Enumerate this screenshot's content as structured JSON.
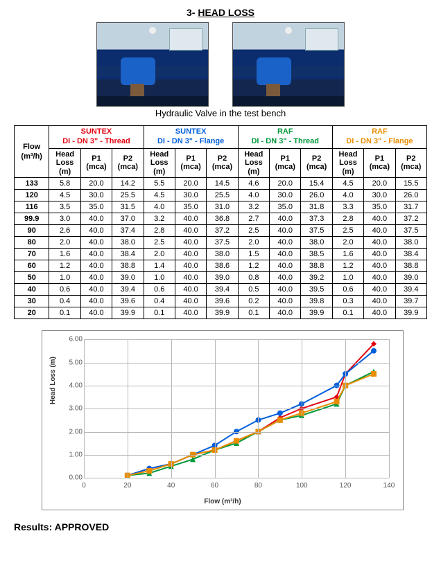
{
  "title_prefix": "3- ",
  "title_text": "HEAD LOSS",
  "caption": "Hydraulic Valve in the test bench",
  "table": {
    "flow_header_line1": "Flow",
    "flow_header_line2": "(m³/h)",
    "groups": [
      {
        "brand": "SUNTEX",
        "desc": "DI - DN 3\" - Thread",
        "color": "#e30613"
      },
      {
        "brand": "SUNTEX",
        "desc": "DI  - DN 3\" - Flange",
        "color": "#005fdb"
      },
      {
        "brand": "RAF",
        "desc": "DI - DN 3\" - Thread",
        "color": "#00983a"
      },
      {
        "brand": "RAF",
        "desc": "DI - DN 3\" - Flange",
        "color": "#e88d00"
      }
    ],
    "subcols": [
      {
        "line1": "Head",
        "line2": "Loss",
        "line3": "(m)"
      },
      {
        "line1": "P1",
        "line2": "(mca)",
        "line3": ""
      },
      {
        "line1": "P2",
        "line2": "(mca)",
        "line3": ""
      }
    ],
    "rows": [
      {
        "flow": "133",
        "c": [
          "5.8",
          "20.0",
          "14.2",
          "5.5",
          "20.0",
          "14.5",
          "4.6",
          "20.0",
          "15.4",
          "4.5",
          "20.0",
          "15.5"
        ]
      },
      {
        "flow": "120",
        "c": [
          "4.5",
          "30.0",
          "25.5",
          "4.5",
          "30.0",
          "25.5",
          "4.0",
          "30.0",
          "26.0",
          "4.0",
          "30.0",
          "26.0"
        ]
      },
      {
        "flow": "116",
        "c": [
          "3.5",
          "35.0",
          "31.5",
          "4.0",
          "35.0",
          "31.0",
          "3.2",
          "35.0",
          "31.8",
          "3.3",
          "35.0",
          "31.7"
        ]
      },
      {
        "flow": "99.9",
        "c": [
          "3.0",
          "40.0",
          "37.0",
          "3.2",
          "40.0",
          "36.8",
          "2.7",
          "40.0",
          "37.3",
          "2.8",
          "40.0",
          "37.2"
        ]
      },
      {
        "flow": "90",
        "c": [
          "2.6",
          "40.0",
          "37.4",
          "2.8",
          "40.0",
          "37.2",
          "2.5",
          "40.0",
          "37.5",
          "2.5",
          "40.0",
          "37.5"
        ]
      },
      {
        "flow": "80",
        "c": [
          "2.0",
          "40.0",
          "38.0",
          "2.5",
          "40.0",
          "37.5",
          "2.0",
          "40.0",
          "38.0",
          "2.0",
          "40.0",
          "38.0"
        ]
      },
      {
        "flow": "70",
        "c": [
          "1.6",
          "40.0",
          "38.4",
          "2.0",
          "40.0",
          "38.0",
          "1.5",
          "40.0",
          "38.5",
          "1.6",
          "40.0",
          "38.4"
        ]
      },
      {
        "flow": "60",
        "c": [
          "1.2",
          "40.0",
          "38.8",
          "1.4",
          "40.0",
          "38.6",
          "1.2",
          "40.0",
          "38.8",
          "1.2",
          "40.0",
          "38.8"
        ]
      },
      {
        "flow": "50",
        "c": [
          "1.0",
          "40.0",
          "39.0",
          "1.0",
          "40.0",
          "39.0",
          "0.8",
          "40.0",
          "39.2",
          "1.0",
          "40.0",
          "39.0"
        ]
      },
      {
        "flow": "40",
        "c": [
          "0.6",
          "40.0",
          "39.4",
          "0.6",
          "40.0",
          "39.4",
          "0.5",
          "40.0",
          "39.5",
          "0.6",
          "40.0",
          "39.4"
        ]
      },
      {
        "flow": "30",
        "c": [
          "0.4",
          "40.0",
          "39.6",
          "0.4",
          "40.0",
          "39.6",
          "0.2",
          "40.0",
          "39.8",
          "0.3",
          "40.0",
          "39.7"
        ]
      },
      {
        "flow": "20",
        "c": [
          "0.1",
          "40.0",
          "39.9",
          "0.1",
          "40.0",
          "39.9",
          "0.1",
          "40.0",
          "39.9",
          "0.1",
          "40.0",
          "39.9"
        ]
      }
    ]
  },
  "chart": {
    "type": "line",
    "xlabel": "Flow (m³/h)",
    "ylabel": "Head Loss (m)",
    "xlim": [
      0,
      140
    ],
    "ylim": [
      0,
      6
    ],
    "ytick_step": 1.0,
    "xtick_step": 20,
    "ytick_decimals": 2,
    "background": "#ffffff",
    "grid_color": "#b7b7b7",
    "axis_color": "#858585",
    "marker_size": 4,
    "line_width": 2,
    "x": [
      20,
      30,
      40,
      50,
      60,
      70,
      80,
      90,
      99.9,
      116,
      120,
      133
    ],
    "series": [
      {
        "name": "SUNTEX-Thread",
        "color": "#e30613",
        "marker": "diamond",
        "y": [
          0.1,
          0.4,
          0.6,
          1.0,
          1.2,
          1.6,
          2.0,
          2.6,
          3.0,
          3.5,
          4.5,
          5.8
        ]
      },
      {
        "name": "SUNTEX-Flange",
        "color": "#005fdb",
        "marker": "circle",
        "y": [
          0.1,
          0.4,
          0.6,
          1.0,
          1.4,
          2.0,
          2.5,
          2.8,
          3.2,
          4.0,
          4.5,
          5.5
        ]
      },
      {
        "name": "RAF-Thread",
        "color": "#00983a",
        "marker": "triangle",
        "y": [
          0.1,
          0.2,
          0.5,
          0.8,
          1.2,
          1.5,
          2.0,
          2.5,
          2.7,
          3.2,
          4.0,
          4.6
        ]
      },
      {
        "name": "RAF-Flange",
        "color": "#e88d00",
        "marker": "square",
        "y": [
          0.1,
          0.3,
          0.6,
          1.0,
          1.2,
          1.6,
          2.0,
          2.5,
          2.8,
          3.3,
          4.0,
          4.5
        ]
      }
    ]
  },
  "results_label": "Results: ",
  "results_value": "APPROVED"
}
